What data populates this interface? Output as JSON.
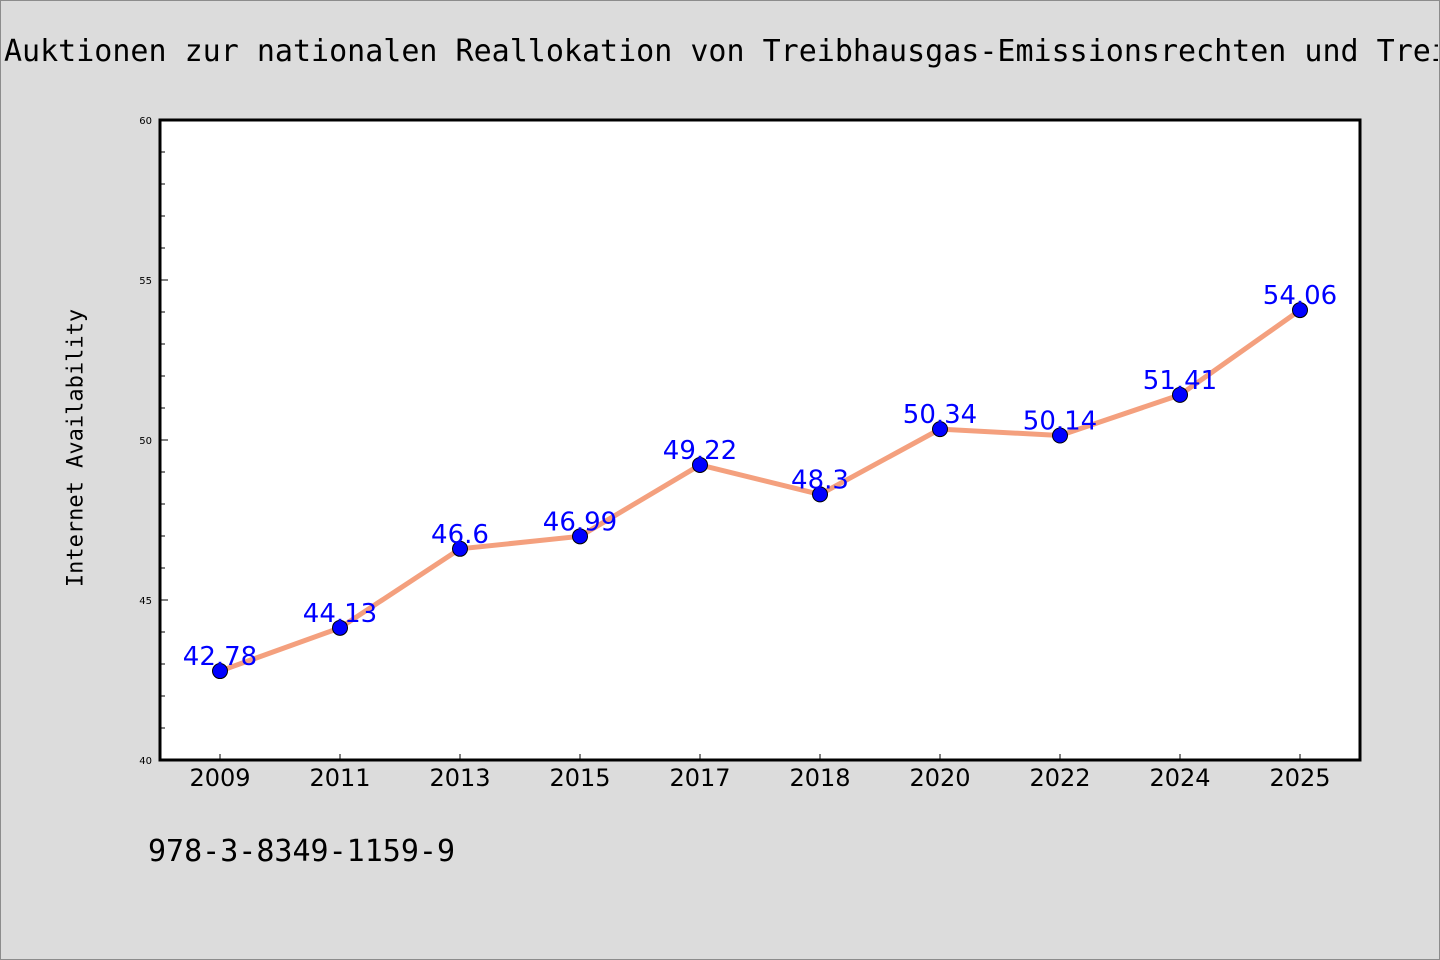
{
  "chart_data": {
    "type": "line",
    "title": "Auktionen zur nationalen Reallokation von Treibhausgas-Emissionsrechten und Treibhausgas",
    "xlabel": "",
    "ylabel": "Internet Availability",
    "categories": [
      "2009",
      "2011",
      "2013",
      "2015",
      "2017",
      "2018",
      "2020",
      "2022",
      "2024",
      "2025"
    ],
    "series": [
      {
        "values": [
          42.78,
          44.13,
          46.6,
          46.99,
          49.22,
          48.3,
          50.34,
          50.14,
          51.41,
          54.06
        ]
      }
    ],
    "data_labels": [
      "42.78",
      "44.13",
      "46.6",
      "46.99",
      "49.22",
      "48.3",
      "50.34",
      "50.14",
      "51.41",
      "54.06"
    ],
    "ylim": [
      40,
      60
    ],
    "yticks": [
      40,
      45,
      50,
      55,
      60
    ],
    "grid": false,
    "colors": {
      "line": "#f4a07e",
      "marker": "#0000ff",
      "label": "#0000ff",
      "background": "#dcdcdc",
      "plot_background": "#ffffff"
    }
  },
  "footnote": "978-3-8349-1159-9"
}
